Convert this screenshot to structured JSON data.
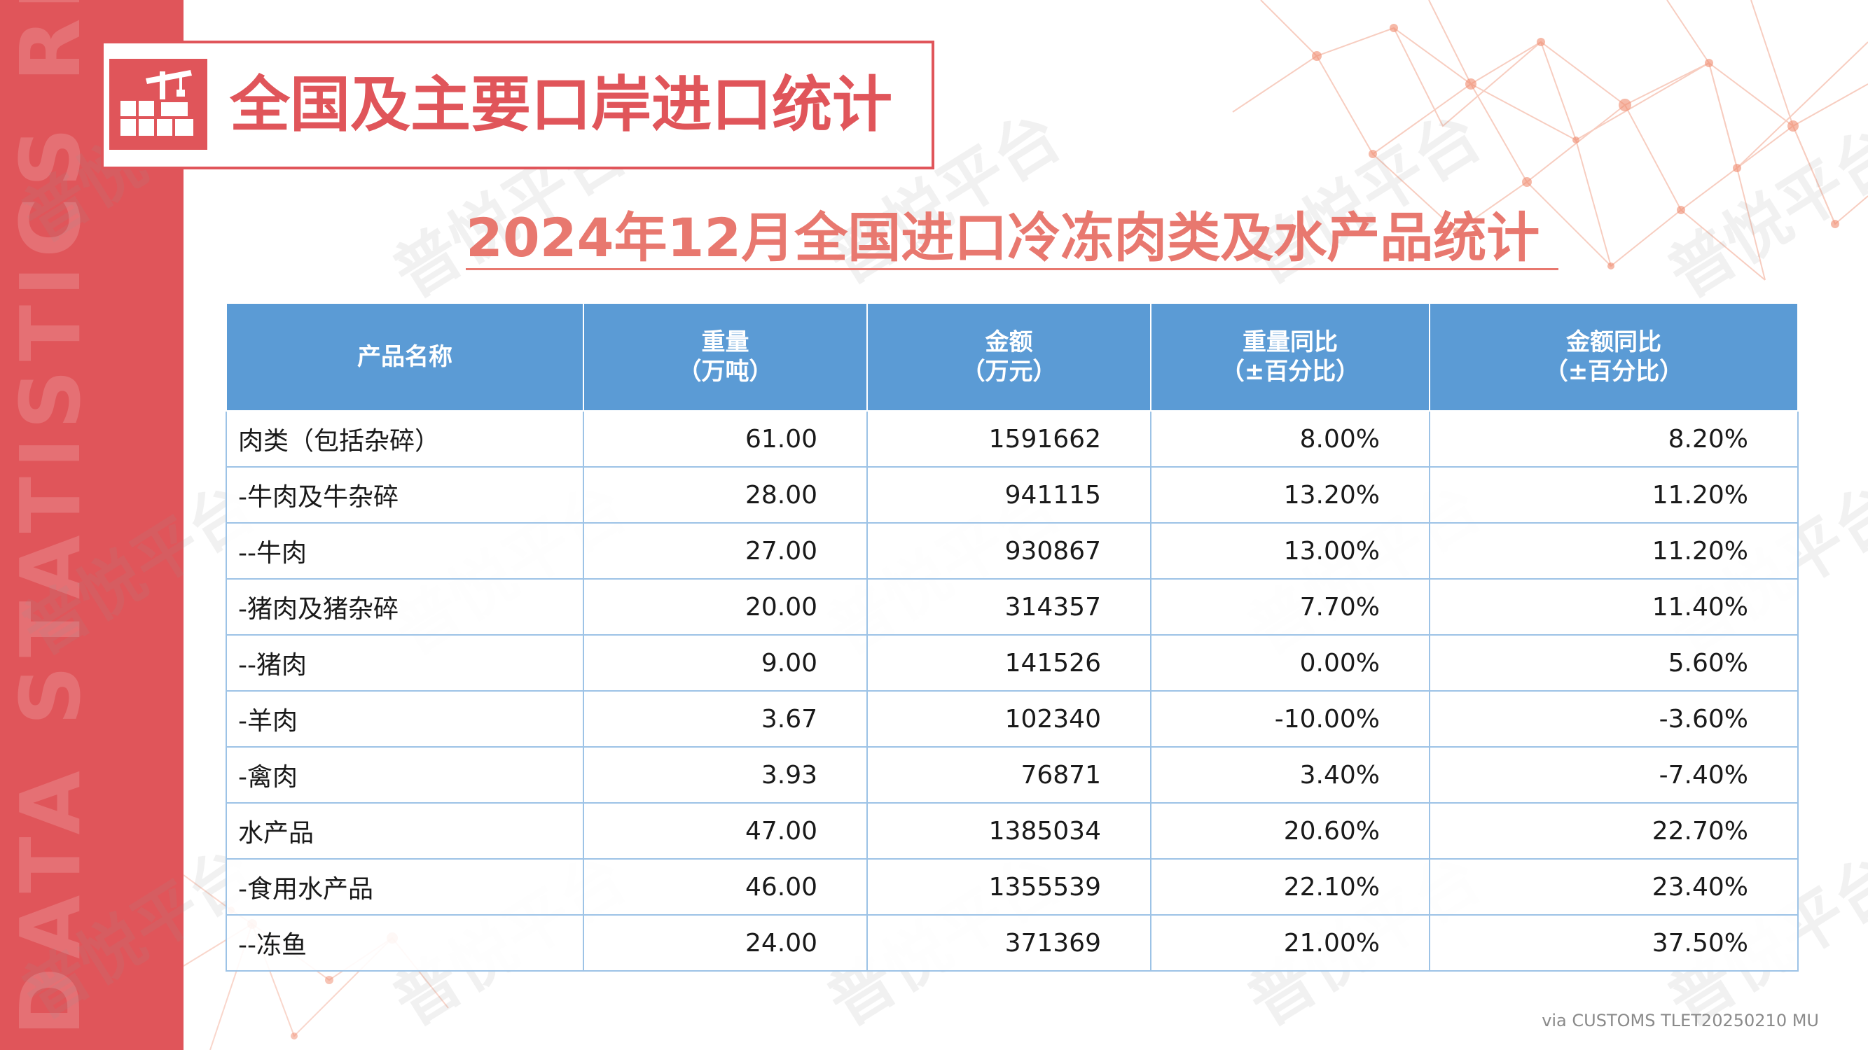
{
  "sidebar": {
    "text": "DATA STATISTICS REPORT"
  },
  "watermark": "普悦平台",
  "header": {
    "section_title": "全国及主要口岸进口统计"
  },
  "report": {
    "title": "2024年12月全国进口冷冻肉类及水产品统计"
  },
  "table": {
    "headers": [
      {
        "line1": "产品名称",
        "line2": ""
      },
      {
        "line1": "重量",
        "line2": "（万吨）"
      },
      {
        "line1": "金额",
        "line2": "（万元）"
      },
      {
        "line1": "重量同比",
        "line2": "（±百分比）"
      },
      {
        "line1": "金额同比",
        "line2": "（±百分比）"
      }
    ],
    "rows": [
      {
        "name": "肉类（包括杂碎）",
        "weight": "61.00",
        "amount": "1591662",
        "weight_yoy": "8.00%",
        "amount_yoy": "8.20%"
      },
      {
        "name": "-牛肉及牛杂碎",
        "weight": "28.00",
        "amount": "941115",
        "weight_yoy": "13.20%",
        "amount_yoy": "11.20%"
      },
      {
        "name": "--牛肉",
        "weight": "27.00",
        "amount": "930867",
        "weight_yoy": "13.00%",
        "amount_yoy": "11.20%"
      },
      {
        "name": "-猪肉及猪杂碎",
        "weight": "20.00",
        "amount": "314357",
        "weight_yoy": "7.70%",
        "amount_yoy": "11.40%"
      },
      {
        "name": "--猪肉",
        "weight": "9.00",
        "amount": "141526",
        "weight_yoy": "0.00%",
        "amount_yoy": "5.60%"
      },
      {
        "name": "-羊肉",
        "weight": "3.67",
        "amount": "102340",
        "weight_yoy": "-10.00%",
        "amount_yoy": "-3.60%"
      },
      {
        "name": "-禽肉",
        "weight": "3.93",
        "amount": "76871",
        "weight_yoy": "3.40%",
        "amount_yoy": "-7.40%"
      },
      {
        "name": "水产品",
        "weight": "47.00",
        "amount": "1385034",
        "weight_yoy": "20.60%",
        "amount_yoy": "22.70%"
      },
      {
        "name": "-食用水产品",
        "weight": "46.00",
        "amount": "1355539",
        "weight_yoy": "22.10%",
        "amount_yoy": "23.40%"
      },
      {
        "name": "--冻鱼",
        "weight": "24.00",
        "amount": "371369",
        "weight_yoy": "21.00%",
        "amount_yoy": "37.50%"
      }
    ]
  },
  "footer": {
    "source": "via CUSTOMS TLET20250210 MU"
  },
  "colors": {
    "accent": "#e0555a",
    "title": "#e8786f",
    "header_bg": "#5b9bd5",
    "grid": "#9dc3e6"
  },
  "icons": {
    "title_icon": "crane-containers-icon"
  }
}
